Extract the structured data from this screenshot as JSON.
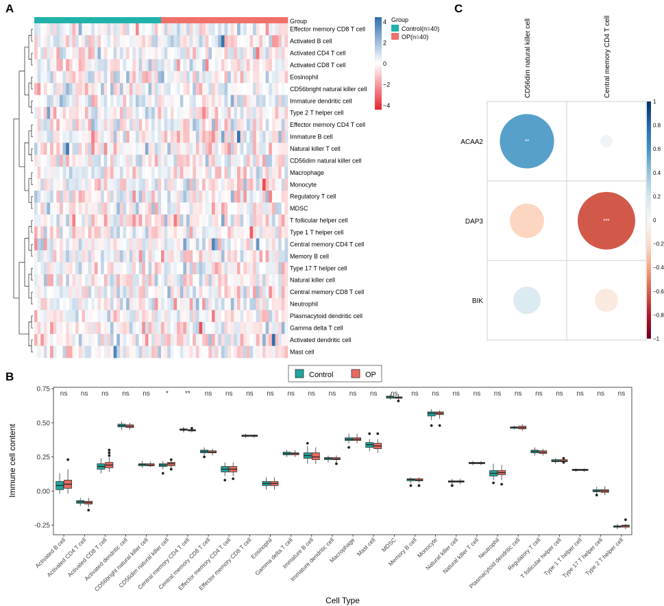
{
  "panels": {
    "a": "A",
    "b": "B",
    "c": "C"
  },
  "chart_data": [
    {
      "id": "A",
      "type": "heatmap",
      "annotation_title": "Group",
      "groups": [
        {
          "label": "Control(n=40)",
          "color": "#20B2AA",
          "n": 40
        },
        {
          "label": "OP(n=40)",
          "color": "#F0706A",
          "n": 40
        }
      ],
      "rows": [
        "Effector memory CD8 T cell",
        "Activated B cell",
        "Activated CD4 T cell",
        "Activated CD8 T cell",
        "Eosinophil",
        "CD56bright natural killer cell",
        "Immature dendritic cell",
        "Type 2 T helper cell",
        "Effector memory CD4 T cell",
        "Immature  B cell",
        "Natural killer T cell",
        "CD56dim natural killer cell",
        "Macrophage",
        "Monocyte",
        "Regulatory T cell",
        "MDSC",
        "T follicular helper cell",
        "Type 1 T helper cell",
        "Central memory CD4 T cell",
        "Memory B cell",
        "Type 17 T helper cell",
        "Natural killer cell",
        "Central memory CD8 T cell",
        "Neutrophil",
        "Plasmacytoid dendritic cell",
        "Gamma delta T cell",
        "Activated dendritic cell",
        "Mast cell"
      ],
      "n_columns": 80,
      "color_scale": {
        "min": -4,
        "max": 4,
        "low": "#E8242E",
        "mid": "#FFFFFF",
        "high": "#2E6FAC",
        "ticks": [
          "4",
          "2",
          "0",
          "−2",
          "−4"
        ]
      },
      "note": "Cell values are z-scores per immune cell type; exact per-sample values not legible, approximate pattern reproduced."
    },
    {
      "id": "B",
      "type": "box",
      "xlabel": "Cell Type",
      "ylabel": "Immune cell content",
      "ylim": [
        -0.32,
        0.76
      ],
      "yticks": [
        {
          "v": 0.75,
          "t": "0.75"
        },
        {
          "v": 0.5,
          "t": "0.50"
        },
        {
          "v": 0.25,
          "t": "0.25"
        },
        {
          "v": 0,
          "t": "0.00"
        },
        {
          "v": -0.25,
          "t": "-0.25"
        }
      ],
      "legend": [
        {
          "name": "Control",
          "color": "#20A59B"
        },
        {
          "name": "OP",
          "color": "#EB6A5E"
        }
      ],
      "categories": [
        "Activated B cell",
        "Activated CD4 T cell",
        "Activated CD8 T cell",
        "Activated dendritic cell",
        "CD56bright natural killer cell",
        "CD56dim natural killer cell",
        "Central memory CD4 T cell",
        "Central memory CD8 T cell",
        "Effector memory CD4 T cell",
        "Effector memory CD8 T cell",
        "Eosinophil",
        "Gamma delta T cell",
        "Immature  B cell",
        "Immature dendritic cell",
        "Macrophage",
        "Mast cell",
        "MDSC",
        "Memory B cell",
        "Monocyte",
        "Natural killer cell",
        "Natural killer T cell",
        "Neutrophil",
        "Plasmacytoid dendritic cell",
        "Regulatory T cell",
        "T follicular helper cell",
        "Type 1 T helper cell",
        "Type 17 T helper cell",
        "Type 2 T helper cell"
      ],
      "significance": [
        "ns",
        "ns",
        "ns",
        "ns",
        "ns",
        "*",
        "**",
        "ns",
        "ns",
        "ns",
        "ns",
        "ns",
        "ns",
        "ns",
        "ns",
        "ns",
        "ns",
        "ns",
        "ns",
        "ns",
        "ns",
        "ns",
        "ns",
        "ns",
        "ns",
        "ns",
        "ns",
        "ns"
      ],
      "series": [
        {
          "name": "Control",
          "boxes": [
            [
              -0.02,
              0.01,
              0.04,
              0.07,
              0.13
            ],
            [
              -0.11,
              -0.09,
              -0.08,
              -0.07,
              -0.05
            ],
            [
              0.13,
              0.16,
              0.18,
              0.2,
              0.24
            ],
            [
              0.45,
              0.47,
              0.48,
              0.49,
              0.51
            ],
            [
              0.17,
              0.185,
              0.195,
              0.2,
              0.22
            ],
            [
              0.16,
              0.18,
              0.19,
              0.2,
              0.22
            ],
            [
              0.43,
              0.445,
              0.45,
              0.455,
              0.47
            ],
            [
              0.26,
              0.28,
              0.29,
              0.3,
              0.32
            ],
            [
              0.11,
              0.14,
              0.16,
              0.18,
              0.21
            ],
            [
              0.39,
              0.4,
              0.405,
              0.41,
              0.42
            ],
            [
              0.01,
              0.04,
              0.055,
              0.07,
              0.1
            ],
            [
              0.25,
              0.265,
              0.275,
              0.285,
              0.3
            ],
            [
              0.2,
              0.24,
              0.26,
              0.28,
              0.33
            ],
            [
              0.21,
              0.23,
              0.24,
              0.245,
              0.26
            ],
            [
              0.35,
              0.37,
              0.38,
              0.39,
              0.42
            ],
            [
              0.29,
              0.32,
              0.34,
              0.355,
              0.38
            ],
            [
              0.67,
              0.68,
              0.69,
              0.695,
              0.71
            ],
            [
              0.06,
              0.075,
              0.085,
              0.09,
              0.1
            ],
            [
              0.52,
              0.55,
              0.57,
              0.58,
              0.6
            ],
            [
              0.05,
              0.065,
              0.07,
              0.075,
              0.09
            ],
            [
              0.19,
              0.2,
              0.205,
              0.21,
              0.22
            ],
            [
              0.08,
              0.11,
              0.13,
              0.15,
              0.2
            ],
            [
              0.45,
              0.46,
              0.465,
              0.47,
              0.48
            ],
            [
              0.26,
              0.28,
              0.29,
              0.3,
              0.32
            ],
            [
              0.2,
              0.215,
              0.22,
              0.23,
              0.24
            ],
            [
              0.14,
              0.15,
              0.155,
              0.16,
              0.165
            ],
            [
              -0.02,
              -0.005,
              0.0,
              0.01,
              0.03
            ],
            [
              -0.28,
              -0.265,
              -0.26,
              -0.255,
              -0.24
            ]
          ]
        },
        {
          "name": "OP",
          "boxes": [
            [
              -0.02,
              0.02,
              0.05,
              0.08,
              0.16
            ],
            [
              -0.12,
              -0.095,
              -0.085,
              -0.075,
              -0.05
            ],
            [
              0.14,
              0.17,
              0.19,
              0.21,
              0.25
            ],
            [
              0.45,
              0.465,
              0.475,
              0.485,
              0.5
            ],
            [
              0.175,
              0.185,
              0.19,
              0.2,
              0.215
            ],
            [
              0.16,
              0.185,
              0.2,
              0.21,
              0.23
            ],
            [
              0.43,
              0.44,
              0.445,
              0.45,
              0.46
            ],
            [
              0.26,
              0.28,
              0.285,
              0.295,
              0.31
            ],
            [
              0.11,
              0.14,
              0.16,
              0.18,
              0.21
            ],
            [
              0.39,
              0.4,
              0.405,
              0.41,
              0.415
            ],
            [
              0.01,
              0.04,
              0.055,
              0.07,
              0.1
            ],
            [
              0.25,
              0.265,
              0.275,
              0.28,
              0.3
            ],
            [
              0.2,
              0.23,
              0.25,
              0.28,
              0.32
            ],
            [
              0.21,
              0.23,
              0.235,
              0.245,
              0.26
            ],
            [
              0.35,
              0.37,
              0.38,
              0.39,
              0.42
            ],
            [
              0.28,
              0.31,
              0.33,
              0.35,
              0.38
            ],
            [
              0.67,
              0.68,
              0.685,
              0.69,
              0.71
            ],
            [
              0.06,
              0.075,
              0.08,
              0.09,
              0.1
            ],
            [
              0.53,
              0.56,
              0.57,
              0.58,
              0.59
            ],
            [
              0.05,
              0.065,
              0.07,
              0.075,
              0.09
            ],
            [
              0.19,
              0.2,
              0.205,
              0.21,
              0.22
            ],
            [
              0.08,
              0.12,
              0.135,
              0.15,
              0.19
            ],
            [
              0.44,
              0.455,
              0.465,
              0.475,
              0.49
            ],
            [
              0.26,
              0.275,
              0.285,
              0.295,
              0.31
            ],
            [
              0.2,
              0.215,
              0.22,
              0.23,
              0.24
            ],
            [
              0.14,
              0.15,
              0.155,
              0.16,
              0.165
            ],
            [
              -0.03,
              -0.01,
              0.0,
              0.01,
              0.035
            ],
            [
              -0.28,
              -0.265,
              -0.255,
              -0.25,
              -0.24
            ]
          ]
        }
      ],
      "outliers": [
        {
          "i": 0,
          "s": 1,
          "v": 0.23
        },
        {
          "i": 1,
          "s": 1,
          "v": -0.14
        },
        {
          "i": 2,
          "s": 1,
          "v": 0.26
        },
        {
          "i": 2,
          "s": 1,
          "v": 0.28
        },
        {
          "i": 2,
          "s": 1,
          "v": 0.3
        },
        {
          "i": 5,
          "s": 0,
          "v": 0.13
        },
        {
          "i": 5,
          "s": 1,
          "v": 0.16
        },
        {
          "i": 5,
          "s": 1,
          "v": 0.23
        },
        {
          "i": 6,
          "s": 0,
          "v": 0.45
        },
        {
          "i": 6,
          "s": 1,
          "v": 0.46
        },
        {
          "i": 7,
          "s": 0,
          "v": 0.25
        },
        {
          "i": 8,
          "s": 0,
          "v": 0.08
        },
        {
          "i": 8,
          "s": 1,
          "v": 0.09
        },
        {
          "i": 12,
          "s": 0,
          "v": 0.35
        },
        {
          "i": 13,
          "s": 1,
          "v": 0.2
        },
        {
          "i": 14,
          "s": 0,
          "v": 0.32
        },
        {
          "i": 15,
          "s": 0,
          "v": 0.42
        },
        {
          "i": 15,
          "s": 1,
          "v": 0.42
        },
        {
          "i": 16,
          "s": 1,
          "v": 0.66
        },
        {
          "i": 17,
          "s": 0,
          "v": 0.04
        },
        {
          "i": 17,
          "s": 1,
          "v": 0.04
        },
        {
          "i": 18,
          "s": 0,
          "v": 0.48
        },
        {
          "i": 18,
          "s": 1,
          "v": 0.48
        },
        {
          "i": 19,
          "s": 0,
          "v": 0.04
        },
        {
          "i": 21,
          "s": 0,
          "v": 0.06
        },
        {
          "i": 21,
          "s": 1,
          "v": 0.05
        },
        {
          "i": 24,
          "s": 1,
          "v": 0.21
        },
        {
          "i": 24,
          "s": 1,
          "v": 0.24
        },
        {
          "i": 26,
          "s": 0,
          "v": -0.03
        },
        {
          "i": 27,
          "s": 1,
          "v": -0.21
        }
      ]
    },
    {
      "id": "C",
      "type": "correlation",
      "columns": [
        "CD56dim natural killer cell",
        "Central memory CD4 T cell"
      ],
      "rows": [
        "ACAA2",
        "DAP3",
        "BIK"
      ],
      "values": [
        [
          0.55,
          0.03
        ],
        [
          -0.22,
          -0.62
        ],
        [
          0.14,
          -0.1
        ]
      ],
      "stars": [
        [
          "**",
          ""
        ],
        [
          "",
          "***"
        ],
        [
          "",
          ""
        ]
      ],
      "colorbar_ticks": [
        {
          "v": 1,
          "t": "1"
        },
        {
          "v": 0.8,
          "t": "0.8"
        },
        {
          "v": 0.6,
          "t": "0.6"
        },
        {
          "v": 0.4,
          "t": "0.4"
        },
        {
          "v": 0.2,
          "t": "0.2"
        },
        {
          "v": 0,
          "t": "0"
        },
        {
          "v": -0.2,
          "t": "−0.2"
        },
        {
          "v": -0.4,
          "t": "−0.4"
        },
        {
          "v": -0.6,
          "t": "−0.6"
        },
        {
          "v": -0.8,
          "t": "−0.8"
        },
        {
          "v": -1,
          "t": "−1"
        }
      ]
    }
  ]
}
